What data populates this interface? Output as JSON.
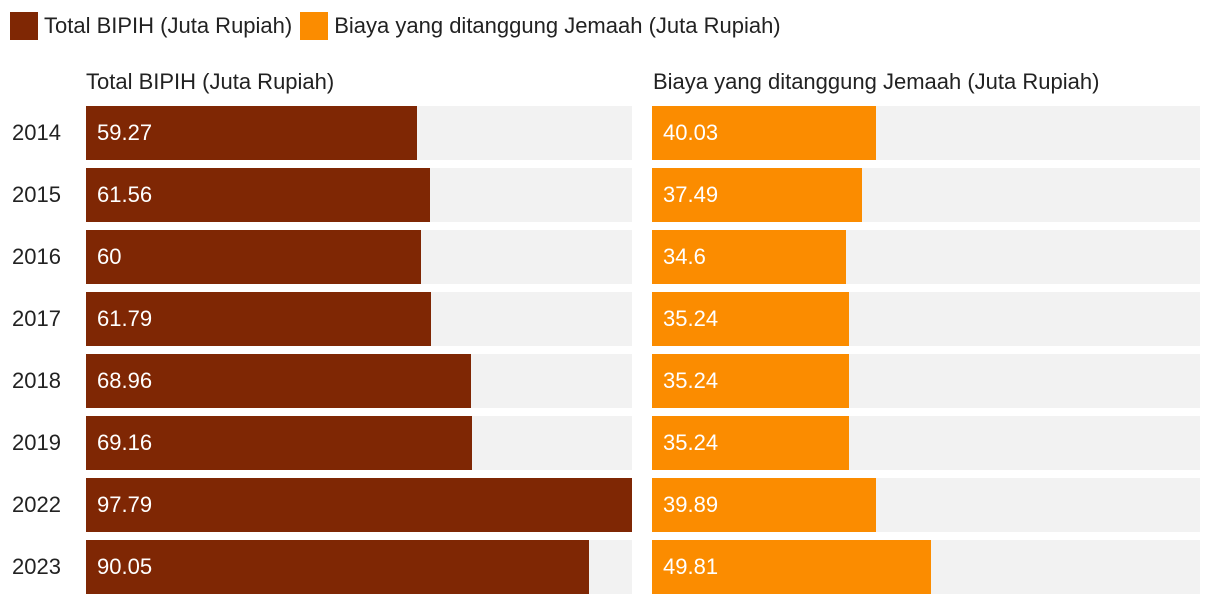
{
  "chart_data": {
    "type": "bar",
    "categories": [
      "2014",
      "2015",
      "2016",
      "2017",
      "2018",
      "2019",
      "2022",
      "2023"
    ],
    "series": [
      {
        "name": "Total BIPIH (Juta Rupiah)",
        "color": "#7f2704",
        "values": [
          59.27,
          61.56,
          60,
          61.79,
          68.96,
          69.16,
          97.79,
          90.05
        ],
        "labels": [
          "59.27",
          "61.56",
          "60",
          "61.79",
          "68.96",
          "69.16",
          "97.79",
          "90.05"
        ]
      },
      {
        "name": "Biaya yang ditanggung Jemaah (Juta Rupiah)",
        "color": "#fb8c00",
        "values": [
          40.03,
          37.49,
          34.6,
          35.24,
          35.24,
          35.24,
          39.89,
          49.81
        ],
        "labels": [
          "40.03",
          "37.49",
          "34.6",
          "35.24",
          "35.24",
          "35.24",
          "39.89",
          "49.81"
        ]
      }
    ],
    "xlim": [
      0,
      97.79
    ],
    "legend": "top-left",
    "grid": false,
    "track_color": "#f2f2f2"
  }
}
